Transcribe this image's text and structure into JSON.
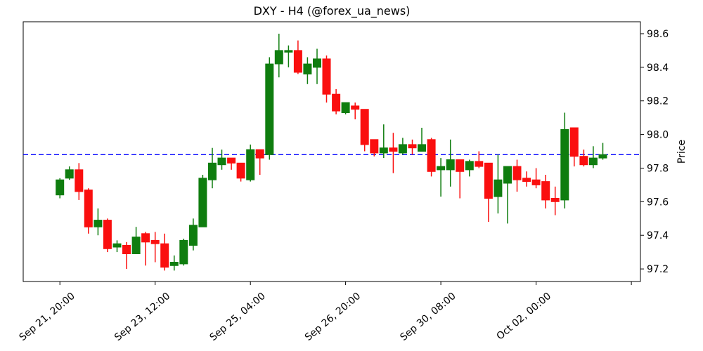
{
  "title": "DXY - H4 (@forex_ua_news)",
  "axes": {
    "y_label": "Price",
    "y_ticks": [
      "97.2",
      "97.4",
      "97.6",
      "97.8",
      "98.0",
      "98.2",
      "98.4",
      "98.6"
    ],
    "x_ticks": [
      {
        "index": 0,
        "label": "Sep 21, 20:00"
      },
      {
        "index": 10,
        "label": "Sep 23, 12:00"
      },
      {
        "index": 20,
        "label": "Sep 25, 04:00"
      },
      {
        "index": 30,
        "label": "Sep 26, 20:00"
      },
      {
        "index": 40,
        "label": "Sep 30, 08:00"
      },
      {
        "index": 50,
        "label": "Oct 02, 00:00"
      },
      {
        "index": 60,
        "label": ""
      }
    ]
  },
  "colors": {
    "up": "#0f7d0f",
    "down": "#fa0f0f",
    "hline": "#0000ff",
    "frame": "#000000",
    "text": "#000000"
  },
  "chart_data": {
    "type": "candlestick",
    "title": "DXY - H4 (@forex_ua_news)",
    "symbol": "DXY",
    "timeframe": "H4",
    "ylabel": "Price",
    "ylim": [
      97.125,
      98.671
    ],
    "xlim_candle_index": [
      -3.85,
      60.95
    ],
    "grid": false,
    "hline": {
      "value": 97.88,
      "style": "dashed",
      "color": "#0000ff"
    },
    "y_tick_values": [
      97.2,
      97.4,
      97.6,
      97.8,
      98.0,
      98.2,
      98.4,
      98.6
    ],
    "x_tick_indices": [
      0,
      10,
      20,
      30,
      40,
      50,
      60
    ],
    "x_tick_labels": [
      "Sep 21, 20:00",
      "Sep 23, 12:00",
      "Sep 25, 04:00",
      "Sep 26, 20:00",
      "Sep 30, 08:00",
      "Oct 02, 00:00",
      ""
    ],
    "ohlc": [
      [
        97.64,
        97.74,
        97.62,
        97.73
      ],
      [
        97.74,
        97.81,
        97.73,
        97.79
      ],
      [
        97.79,
        97.83,
        97.61,
        97.66
      ],
      [
        97.67,
        97.68,
        97.41,
        97.45
      ],
      [
        97.45,
        97.56,
        97.4,
        97.49
      ],
      [
        97.49,
        97.5,
        97.3,
        97.32
      ],
      [
        97.33,
        97.37,
        97.3,
        97.35
      ],
      [
        97.34,
        97.36,
        97.2,
        97.29
      ],
      [
        97.29,
        97.45,
        97.29,
        97.39
      ],
      [
        97.41,
        97.42,
        97.22,
        97.36
      ],
      [
        97.37,
        97.42,
        97.24,
        97.35
      ],
      [
        97.35,
        97.41,
        97.19,
        97.21
      ],
      [
        97.22,
        97.28,
        97.19,
        97.24
      ],
      [
        97.23,
        97.38,
        97.22,
        97.37
      ],
      [
        97.34,
        97.5,
        97.31,
        97.46
      ],
      [
        97.45,
        97.76,
        97.45,
        97.74
      ],
      [
        97.73,
        97.92,
        97.68,
        97.83
      ],
      [
        97.82,
        97.91,
        97.79,
        97.86
      ],
      [
        97.86,
        97.86,
        97.79,
        97.83
      ],
      [
        97.83,
        97.83,
        97.72,
        97.74
      ],
      [
        97.73,
        97.94,
        97.72,
        97.91
      ],
      [
        97.91,
        97.91,
        97.76,
        97.86
      ],
      [
        97.88,
        98.46,
        97.85,
        98.42
      ],
      [
        98.42,
        98.6,
        98.34,
        98.5
      ],
      [
        98.49,
        98.53,
        98.4,
        98.5
      ],
      [
        98.5,
        98.56,
        98.36,
        98.37
      ],
      [
        98.36,
        98.46,
        98.3,
        98.42
      ],
      [
        98.4,
        98.51,
        98.3,
        98.45
      ],
      [
        98.45,
        98.47,
        98.19,
        98.24
      ],
      [
        98.24,
        98.27,
        98.12,
        98.14
      ],
      [
        98.13,
        98.19,
        98.12,
        98.19
      ],
      [
        98.17,
        98.19,
        98.09,
        98.15
      ],
      [
        98.15,
        98.15,
        97.9,
        97.94
      ],
      [
        97.97,
        97.97,
        97.87,
        97.89
      ],
      [
        97.89,
        98.06,
        97.86,
        97.92
      ],
      [
        97.92,
        98.01,
        97.77,
        97.9
      ],
      [
        97.89,
        97.98,
        97.88,
        97.94
      ],
      [
        97.94,
        97.97,
        97.88,
        97.92
      ],
      [
        97.9,
        98.04,
        97.9,
        97.94
      ],
      [
        97.97,
        97.98,
        97.75,
        97.78
      ],
      [
        97.79,
        97.86,
        97.63,
        97.81
      ],
      [
        97.79,
        97.97,
        97.69,
        97.85
      ],
      [
        97.85,
        97.85,
        97.62,
        97.78
      ],
      [
        97.79,
        97.85,
        97.75,
        97.84
      ],
      [
        97.84,
        97.9,
        97.8,
        97.81
      ],
      [
        97.83,
        97.83,
        97.48,
        97.62
      ],
      [
        97.63,
        97.88,
        97.53,
        97.73
      ],
      [
        97.71,
        97.81,
        97.47,
        97.81
      ],
      [
        97.81,
        97.85,
        97.66,
        97.73
      ],
      [
        97.74,
        97.78,
        97.69,
        97.72
      ],
      [
        97.73,
        97.8,
        97.68,
        97.7
      ],
      [
        97.72,
        97.76,
        97.56,
        97.61
      ],
      [
        97.62,
        97.69,
        97.52,
        97.6
      ],
      [
        97.61,
        98.13,
        97.56,
        98.03
      ],
      [
        98.04,
        98.04,
        97.81,
        97.87
      ],
      [
        97.87,
        97.91,
        97.81,
        97.82
      ],
      [
        97.82,
        97.93,
        97.8,
        97.86
      ],
      [
        97.86,
        97.95,
        97.85,
        97.88
      ]
    ]
  }
}
